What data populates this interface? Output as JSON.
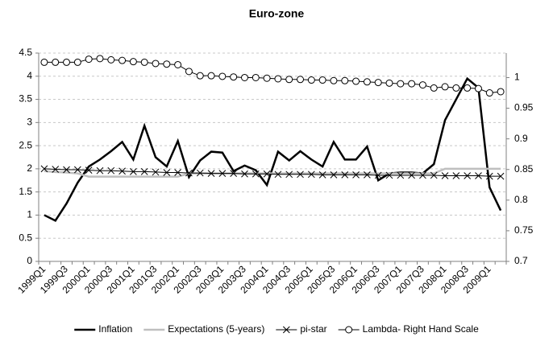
{
  "chart_data": {
    "type": "line",
    "title": "Euro-zone",
    "categories": [
      "1999Q1",
      null,
      "1999Q3",
      null,
      "2000Q1",
      null,
      "2000Q3",
      null,
      "2001Q1",
      null,
      "2001Q3",
      null,
      "2002Q1",
      null,
      "2002Q3",
      null,
      "2003Q1",
      null,
      "2003Q3",
      null,
      "2004Q1",
      null,
      "2004Q3",
      null,
      "2005Q1",
      null,
      "2005Q3",
      null,
      "2006Q1",
      null,
      "2006Q3",
      null,
      "2007Q1",
      null,
      "2007Q3",
      null,
      "2008Q1",
      null,
      "2008Q3",
      null,
      "2009Q1",
      null
    ],
    "series": [
      {
        "name": "Inflation",
        "color": "#000000",
        "width": 2.5,
        "values": [
          1.0,
          0.88,
          1.25,
          1.7,
          2.05,
          2.2,
          2.38,
          2.58,
          2.2,
          2.93,
          2.25,
          2.05,
          2.6,
          1.82,
          2.18,
          2.37,
          2.35,
          1.95,
          2.07,
          1.97,
          1.65,
          2.37,
          2.18,
          2.38,
          2.2,
          2.05,
          2.58,
          2.2,
          2.2,
          2.48,
          1.75,
          1.9,
          1.92,
          1.92,
          1.9,
          2.1,
          3.05,
          3.5,
          3.95,
          3.75,
          1.6,
          1.1
        ]
      },
      {
        "name": "Expectations (5-years)",
        "color": "#bfbfbf",
        "width": 2.5,
        "values": [
          1.95,
          1.93,
          1.92,
          1.9,
          1.83,
          1.83,
          1.83,
          1.83,
          1.83,
          1.83,
          1.83,
          1.83,
          1.83,
          1.9,
          1.9,
          1.9,
          1.9,
          1.9,
          1.9,
          1.9,
          1.9,
          1.9,
          1.9,
          1.9,
          1.9,
          1.9,
          1.9,
          1.9,
          1.9,
          1.9,
          1.9,
          1.9,
          1.9,
          1.9,
          1.9,
          1.9,
          2.0,
          2.0,
          2.0,
          2.0,
          2.0,
          2.0
        ]
      },
      {
        "name": "pi-star",
        "color": "#000000",
        "width": 1,
        "marker": "x",
        "values": [
          2.0,
          1.99,
          1.98,
          1.98,
          1.97,
          1.96,
          1.96,
          1.95,
          1.94,
          1.94,
          1.93,
          1.92,
          1.92,
          1.91,
          1.91,
          1.9,
          1.9,
          1.9,
          1.89,
          1.89,
          1.89,
          1.88,
          1.88,
          1.88,
          1.88,
          1.87,
          1.87,
          1.87,
          1.87,
          1.87,
          1.86,
          1.86,
          1.86,
          1.86,
          1.86,
          1.86,
          1.85,
          1.85,
          1.85,
          1.85,
          1.84,
          1.84
        ]
      },
      {
        "name": "Lambda- Right Hand Scale",
        "color": "#000000",
        "width": 1,
        "marker": "circle",
        "axis": "y2",
        "values": [
          1.025,
          1.025,
          1.025,
          1.025,
          1.03,
          1.031,
          1.029,
          1.028,
          1.026,
          1.025,
          1.023,
          1.022,
          1.021,
          1.01,
          1.003,
          1.003,
          1.002,
          1.001,
          1.0,
          1.0,
          0.999,
          0.998,
          0.997,
          0.997,
          0.996,
          0.996,
          0.995,
          0.995,
          0.994,
          0.993,
          0.992,
          0.991,
          0.99,
          0.99,
          0.988,
          0.983,
          0.985,
          0.983,
          0.983,
          0.982,
          0.975,
          0.977
        ]
      }
    ],
    "ylim": [
      0,
      4.5
    ],
    "yticks": [
      0,
      0.5,
      1,
      1.5,
      2,
      2.5,
      3,
      3.5,
      4,
      4.5
    ],
    "y2lim": [
      0.7,
      1.04
    ],
    "y2ticks": [
      0.7,
      0.75,
      0.8,
      0.85,
      0.9,
      0.95,
      1
    ],
    "grid": true,
    "legend": "bottom"
  }
}
